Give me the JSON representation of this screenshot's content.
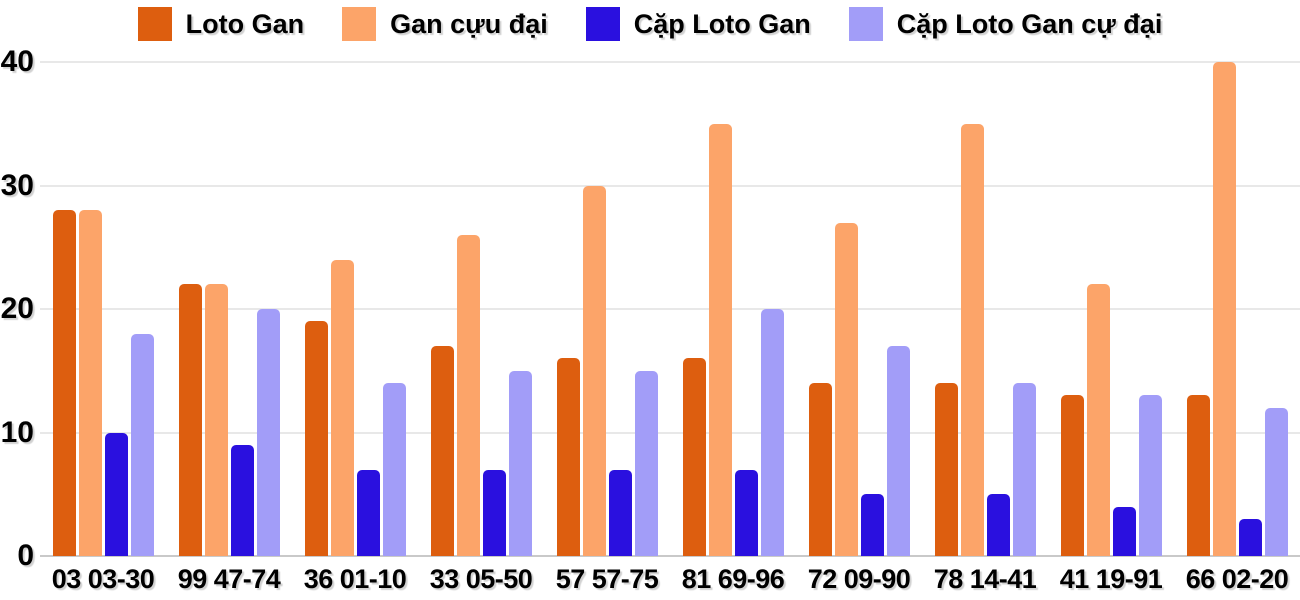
{
  "chart_data": {
    "type": "bar",
    "title": "",
    "xlabel": "",
    "ylabel": "",
    "ylim": [
      0,
      40
    ],
    "yticks": [
      0,
      10,
      20,
      30,
      40
    ],
    "grid": "horizontal",
    "legend_position": "top-center",
    "background_color": "#ffffff",
    "gridline_color": "#e8e8e8",
    "baseline_color": "#c9c9c9",
    "text_color": "#000000",
    "categories": [
      "03 03-30",
      "99 47-74",
      "36 01-10",
      "33 05-50",
      "57 57-75",
      "81 69-96",
      "72 09-90",
      "78 14-41",
      "41 19-91",
      "66 02-20"
    ],
    "series": [
      {
        "name": "Loto Gan",
        "color": "#dd5e0f",
        "values": [
          28,
          22,
          19,
          17,
          16,
          16,
          14,
          14,
          13,
          13
        ]
      },
      {
        "name": "Gan cựu đại",
        "color": "#fca469",
        "values": [
          28,
          22,
          24,
          26,
          30,
          35,
          27,
          35,
          22,
          40
        ]
      },
      {
        "name": "Cặp Loto Gan",
        "color": "#2a10df",
        "values": [
          10,
          9,
          7,
          7,
          7,
          7,
          5,
          5,
          4,
          3
        ]
      },
      {
        "name": "Cặp Loto Gan cự đại",
        "color": "#a29df8",
        "values": [
          18,
          20,
          14,
          15,
          15,
          20,
          17,
          14,
          13,
          12
        ]
      }
    ]
  }
}
